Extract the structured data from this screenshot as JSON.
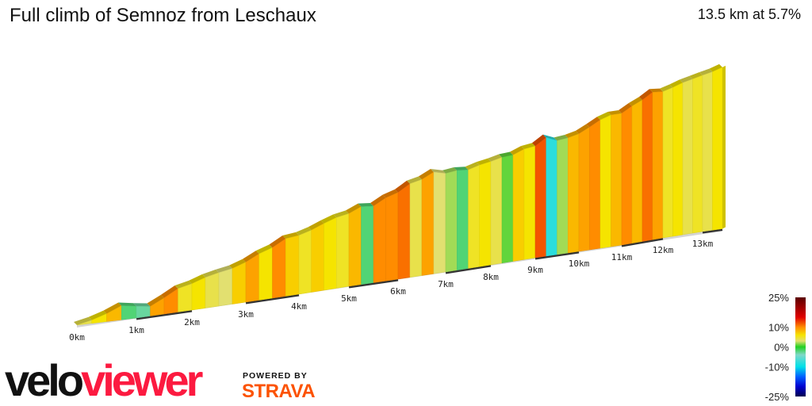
{
  "header": {
    "title": "Full climb of Semnoz from Leschaux",
    "summary": "13.5 km at 5.7%"
  },
  "branding": {
    "logo_part1": "velo",
    "logo_part2": "viewer",
    "powered_by": "POWERED BY",
    "strava": "STRAVA",
    "colors": {
      "velo": "#111111",
      "viewer": "#fc1a40",
      "strava": "#fc5200"
    }
  },
  "chart_data": {
    "type": "area",
    "title": "Full climb of Semnoz from Leschaux",
    "distance_km": 13.5,
    "average_gradient_pct": 5.7,
    "x_ticks": [
      "0km",
      "1km",
      "2km",
      "3km",
      "4km",
      "5km",
      "6km",
      "7km",
      "8km",
      "9km",
      "10km",
      "11km",
      "12km",
      "13km"
    ],
    "segment_length_km": 0.25,
    "segment_gradients_pct": [
      4,
      6,
      8,
      -2,
      -3,
      9,
      10,
      5,
      6,
      4,
      3,
      7,
      9,
      6,
      10,
      7,
      5,
      7,
      6,
      5,
      8,
      -2,
      10,
      10,
      11,
      4,
      9,
      3,
      2,
      -2,
      5,
      6,
      4,
      1,
      7,
      6,
      12,
      -8,
      2,
      8,
      9,
      10,
      6,
      8,
      10,
      8,
      11,
      9,
      5,
      6,
      4,
      5,
      4,
      6
    ],
    "color_scale": {
      "labels": [
        "25%",
        "10%",
        "0%",
        "-10%",
        "-25%"
      ],
      "stops": [
        {
          "value": 25,
          "color": "#5a0000"
        },
        {
          "value": 15,
          "color": "#e00000"
        },
        {
          "value": 10,
          "color": "#ff8c00"
        },
        {
          "value": 6,
          "color": "#f5e400"
        },
        {
          "value": 3,
          "color": "#e2e070"
        },
        {
          "value": 0,
          "color": "#22d022"
        },
        {
          "value": -4,
          "color": "#80d8c8"
        },
        {
          "value": -10,
          "color": "#00e0e8"
        },
        {
          "value": -15,
          "color": "#0060ff"
        },
        {
          "value": -20,
          "color": "#0000d0"
        },
        {
          "value": -25,
          "color": "#000050"
        }
      ]
    }
  }
}
